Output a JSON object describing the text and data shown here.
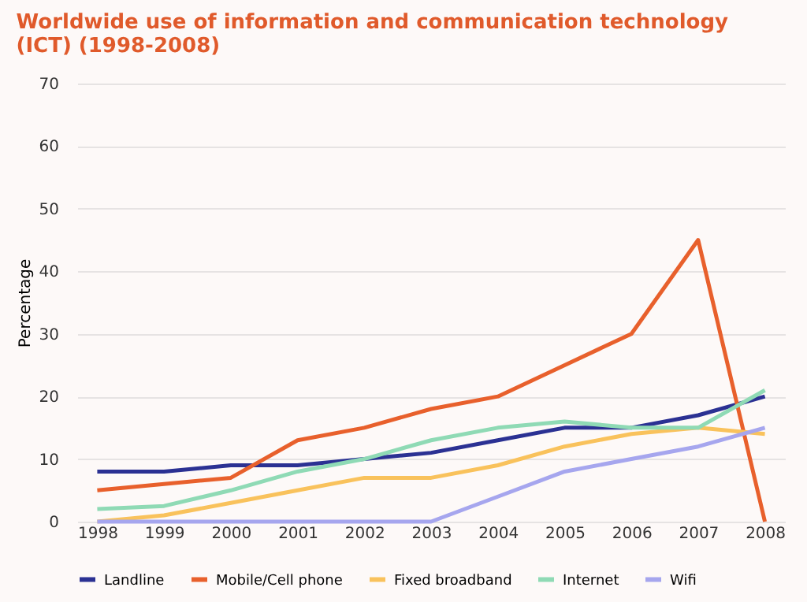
{
  "chart_data": {
    "type": "line",
    "title": "Worldwide use of information and communication technology (ICT) (1998-2008)",
    "ylabel": "Percentage",
    "categories": [
      "1998",
      "1999",
      "2000",
      "2001",
      "2002",
      "2003",
      "2004",
      "2005",
      "2006",
      "2007",
      "2008"
    ],
    "series": [
      {
        "name": "Landline",
        "color": "#2b3193",
        "values": [
          8,
          8,
          9,
          9,
          10,
          11,
          13,
          15,
          15,
          17,
          20
        ]
      },
      {
        "name": "Mobile/Cell phone",
        "color": "#e8602c",
        "values": [
          5,
          6,
          7,
          13,
          15,
          18,
          20,
          25,
          30,
          45,
          0
        ]
      },
      {
        "name": "Fixed broadband",
        "color": "#f9c25c",
        "values": [
          0,
          1,
          3,
          5,
          7,
          7,
          9,
          12,
          14,
          15,
          14
        ]
      },
      {
        "name": "Internet",
        "color": "#8fdab5",
        "values": [
          2,
          2.5,
          5,
          8,
          10,
          13,
          15,
          16,
          15,
          15,
          21
        ]
      },
      {
        "name": "Wifi",
        "color": "#a6a6ee",
        "values": [
          0,
          0,
          0,
          0,
          0,
          0,
          4,
          8,
          10,
          12,
          15
        ]
      }
    ],
    "ylim": [
      0,
      70
    ],
    "yticks": [
      0,
      10,
      20,
      30,
      40,
      50,
      60,
      70
    ],
    "grid": "y",
    "legend": "bottom",
    "marker": "none",
    "line_style": "solid"
  }
}
